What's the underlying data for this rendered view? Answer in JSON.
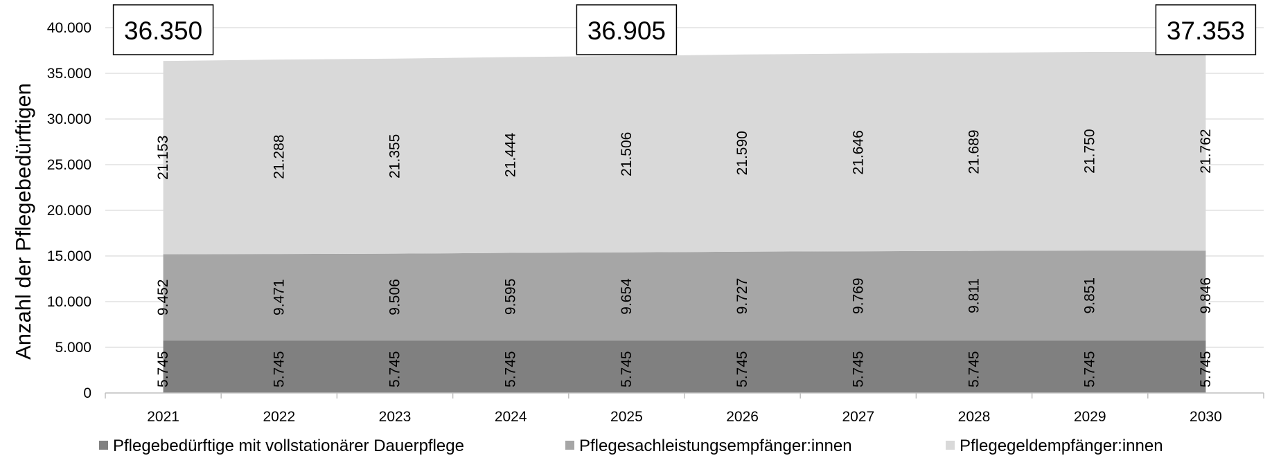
{
  "chart_data": {
    "type": "area",
    "stacked": true,
    "categories": [
      "2021",
      "2022",
      "2023",
      "2024",
      "2025",
      "2026",
      "2027",
      "2028",
      "2029",
      "2030"
    ],
    "ylabel": "Anzahl der Pflegebedürftigen",
    "ylim": [
      0,
      40000
    ],
    "yticks": [
      0,
      5000,
      10000,
      15000,
      20000,
      25000,
      30000,
      35000,
      40000
    ],
    "ytick_labels": [
      "0",
      "5.000",
      "10.000",
      "15.000",
      "20.000",
      "25.000",
      "30.000",
      "35.000",
      "40.000"
    ],
    "grid": true,
    "legend_position": "bottom",
    "series": [
      {
        "name": "Pflegebedürftige mit vollstationärer Dauerpflege",
        "color": "#808080",
        "values": [
          5745,
          5745,
          5745,
          5745,
          5745,
          5745,
          5745,
          5745,
          5745,
          5745
        ],
        "labels": [
          "5.745",
          "5.745",
          "5.745",
          "5.745",
          "5.745",
          "5.745",
          "5.745",
          "5.745",
          "5.745",
          "5.745"
        ]
      },
      {
        "name": "Pflegesachleistungsempfänger:innen",
        "color": "#a6a6a6",
        "values": [
          9452,
          9471,
          9506,
          9595,
          9654,
          9727,
          9769,
          9811,
          9851,
          9846
        ],
        "labels": [
          "9.452",
          "9.471",
          "9.506",
          "9.595",
          "9.654",
          "9.727",
          "9.769",
          "9.811",
          "9.851",
          "9.846"
        ]
      },
      {
        "name": "Pflegegeldempfänger:innen",
        "color": "#d9d9d9",
        "values": [
          21153,
          21288,
          21355,
          21444,
          21506,
          21590,
          21646,
          21689,
          21750,
          21762
        ],
        "labels": [
          "21.153",
          "21.288",
          "21.355",
          "21.444",
          "21.506",
          "21.590",
          "21.646",
          "21.689",
          "21.750",
          "21.762"
        ]
      }
    ],
    "totals": [
      {
        "category": "2021",
        "label": "36.350"
      },
      {
        "category": "2025",
        "label": "36.905"
      },
      {
        "category": "2030",
        "label": "37.353"
      }
    ]
  }
}
